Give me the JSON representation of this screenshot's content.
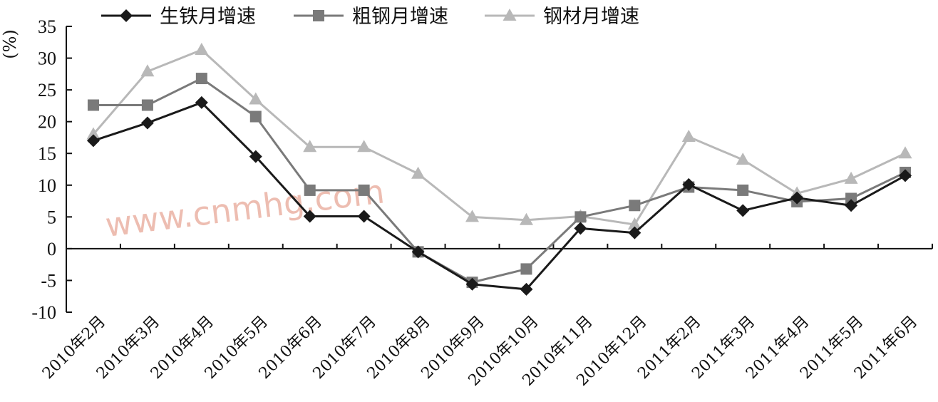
{
  "chart_data": {
    "type": "line",
    "unit_label": "%",
    "watermark": "www.cnmhg.com",
    "ylim": [
      -10,
      35
    ],
    "yticks": [
      35,
      30,
      25,
      20,
      15,
      10,
      5,
      0,
      -5,
      -10
    ],
    "ytick_labels": [
      "35",
      "30",
      "25",
      "20",
      "15",
      "10",
      "5",
      "0",
      "-5",
      "-10"
    ],
    "categories": [
      "2010年2月",
      "2010年3月",
      "2010年4月",
      "2010年5月",
      "2010年6月",
      "2010年7月",
      "2010年8月",
      "2010年9月",
      "2010年10月",
      "2010年11月",
      "2010年12月",
      "2011年2月",
      "2011年3月",
      "2011年4月",
      "2011年5月",
      "2011年6月"
    ],
    "legend_position": "top-left",
    "grid": false,
    "series": [
      {
        "name": "生铁月增速",
        "marker": "diamond",
        "color": "#1a1a1a",
        "values": [
          17.0,
          19.8,
          23.0,
          14.5,
          5.1,
          5.1,
          -0.5,
          -5.6,
          -6.4,
          3.2,
          2.5,
          10.1,
          6.0,
          8.0,
          6.8,
          11.5
        ]
      },
      {
        "name": "粗钢月增速",
        "marker": "square",
        "color": "#7a7a7a",
        "values": [
          22.6,
          22.6,
          26.8,
          20.8,
          9.2,
          9.2,
          -0.5,
          -5.3,
          -3.2,
          5.0,
          6.8,
          9.7,
          9.2,
          7.4,
          7.9,
          12.0
        ]
      },
      {
        "name": "钢材月增速",
        "marker": "triangle",
        "color": "#b8b8b8",
        "values": [
          18.0,
          27.9,
          31.3,
          23.5,
          16.0,
          16.0,
          11.8,
          5.0,
          4.5,
          5.1,
          3.8,
          17.6,
          14.0,
          8.7,
          11.0,
          15.0
        ]
      }
    ]
  }
}
